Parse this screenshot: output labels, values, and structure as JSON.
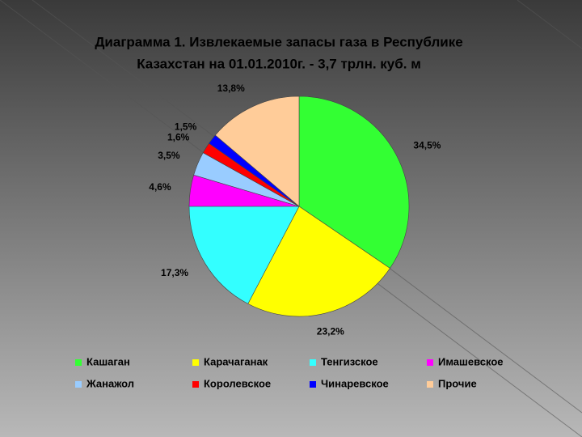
{
  "chart_data": {
    "type": "pie",
    "title_lines": [
      "Диаграмма 1. Извлекаемые запасы газа в Республике",
      "Казахстан на 01.01.2010г. - 3,7 трлн. куб. м"
    ],
    "categories": [
      "Кашаган",
      "Карачаганак",
      "Тенгизское",
      "Имашевское",
      "Жанажол",
      "Королевское",
      "Чинаревское",
      "Прочие"
    ],
    "values": [
      34.5,
      23.2,
      17.3,
      4.6,
      3.5,
      1.6,
      1.5,
      13.8
    ],
    "value_labels": [
      "34,5%",
      "23,2%",
      "17,3%",
      "4,6%",
      "3,5%",
      "1,6%",
      "1,5%",
      "13,8%"
    ],
    "colors": [
      "#33ff33",
      "#ffff00",
      "#33ffff",
      "#ff00ff",
      "#99ccff",
      "#ff0000",
      "#0000ff",
      "#ffcc99"
    ],
    "legend": "bottom"
  }
}
